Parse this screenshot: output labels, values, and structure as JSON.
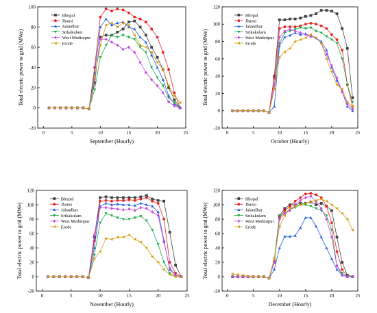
{
  "chart_data": [
    {
      "type": "line",
      "xlabel": "September (Hourly)",
      "ylabel": "Total electric power to grid (MWe)",
      "xlim": [
        -1,
        25
      ],
      "ylim": [
        -20,
        100
      ],
      "xticks": [
        0,
        5,
        10,
        15,
        20,
        25
      ],
      "yticks": [
        -20,
        0,
        20,
        40,
        60,
        80,
        100
      ],
      "legend": "top-left",
      "x": [
        1,
        2,
        3,
        4,
        5,
        6,
        7,
        8,
        9,
        10,
        11,
        12,
        13,
        14,
        15,
        16,
        17,
        18,
        19,
        20,
        21,
        22,
        23,
        24
      ],
      "series": [
        {
          "name": "Bhopal",
          "values": [
            0,
            0,
            0,
            0,
            0,
            0,
            0,
            -1,
            25,
            70,
            72,
            72,
            75,
            78,
            85,
            86,
            80,
            72,
            60,
            50,
            38,
            20,
            8,
            0
          ]
        },
        {
          "name": "Jhansi",
          "values": [
            0,
            0,
            0,
            0,
            0,
            0,
            0,
            -1,
            40,
            90,
            98,
            96,
            98,
            97,
            94,
            90,
            88,
            85,
            78,
            70,
            55,
            38,
            15,
            0
          ]
        },
        {
          "name": "Jalandhar",
          "values": [
            0,
            0,
            0,
            0,
            0,
            0,
            0,
            -1,
            35,
            80,
            88,
            82,
            84,
            85,
            80,
            78,
            70,
            65,
            52,
            40,
            28,
            12,
            4,
            0
          ]
        },
        {
          "name": "Srikakulam",
          "values": [
            0,
            0,
            0,
            0,
            0,
            0,
            0,
            -1,
            18,
            50,
            62,
            72,
            70,
            72,
            70,
            68,
            60,
            55,
            40,
            30,
            22,
            10,
            5,
            0
          ]
        },
        {
          "name": "West Medinipur",
          "values": [
            0,
            0,
            0,
            0,
            0,
            0,
            0,
            -1,
            28,
            68,
            68,
            65,
            62,
            58,
            60,
            55,
            45,
            35,
            28,
            22,
            15,
            6,
            2,
            0
          ]
        },
        {
          "name": "Erode",
          "values": [
            0,
            0,
            0,
            0,
            0,
            0,
            0,
            -1,
            30,
            62,
            82,
            84,
            80,
            84,
            82,
            72,
            62,
            60,
            55,
            45,
            38,
            22,
            12,
            5
          ]
        }
      ]
    },
    {
      "type": "line",
      "xlabel": "October (Hourly)",
      "ylabel": "Total electric power to grid (MWe)",
      "xlim": [
        -1,
        25
      ],
      "ylim": [
        -20,
        120
      ],
      "xticks": [
        0,
        5,
        10,
        15,
        20,
        25
      ],
      "yticks": [
        -20,
        0,
        20,
        40,
        60,
        80,
        100,
        120
      ],
      "legend": "top-left",
      "x": [
        1,
        2,
        3,
        4,
        5,
        6,
        7,
        8,
        9,
        10,
        11,
        12,
        13,
        14,
        15,
        16,
        17,
        18,
        19,
        20,
        21,
        22,
        23,
        24
      ],
      "series": [
        {
          "name": "Bhopal",
          "values": [
            0,
            0,
            0,
            0,
            0,
            0,
            0,
            -2,
            40,
            105,
            105,
            106,
            106,
            107,
            109,
            110,
            112,
            116,
            116,
            115,
            112,
            95,
            72,
            15
          ]
        },
        {
          "name": "Jhansi",
          "values": [
            0,
            0,
            0,
            0,
            0,
            0,
            0,
            -2,
            38,
            95,
            97,
            97,
            97,
            98,
            100,
            101,
            100,
            98,
            95,
            88,
            82,
            70,
            30,
            5
          ]
        },
        {
          "name": "Jalandhar",
          "values": [
            0,
            0,
            0,
            0,
            0,
            0,
            0,
            -2,
            5,
            75,
            85,
            87,
            90,
            88,
            89,
            86,
            84,
            80,
            70,
            50,
            35,
            22,
            5,
            0
          ]
        },
        {
          "name": "Srikakulam",
          "values": [
            0,
            0,
            0,
            0,
            0,
            0,
            0,
            -2,
            25,
            78,
            90,
            92,
            94,
            96,
            95,
            96,
            92,
            90,
            86,
            82,
            78,
            60,
            30,
            10
          ]
        },
        {
          "name": "West Medinipur",
          "values": [
            0,
            0,
            0,
            0,
            0,
            0,
            0,
            -2,
            30,
            85,
            92,
            94,
            92,
            90,
            88,
            86,
            84,
            78,
            65,
            52,
            38,
            22,
            8,
            2
          ]
        },
        {
          "name": "Erode",
          "values": [
            0,
            0,
            0,
            0,
            0,
            0,
            0,
            -2,
            25,
            62,
            68,
            72,
            80,
            82,
            84,
            88,
            84,
            78,
            60,
            45,
            30,
            25,
            10,
            5
          ]
        }
      ]
    },
    {
      "type": "line",
      "xlabel": "November (Hourly)",
      "ylabel": "Total electric power to grid (MWe)",
      "xlim": [
        -1,
        25
      ],
      "ylim": [
        -20,
        120
      ],
      "xticks": [
        0,
        5,
        10,
        15,
        20,
        25
      ],
      "yticks": [
        -20,
        0,
        20,
        40,
        60,
        80,
        100,
        120
      ],
      "legend": "top-left",
      "x": [
        1,
        2,
        3,
        4,
        5,
        6,
        7,
        8,
        9,
        10,
        11,
        12,
        13,
        14,
        15,
        16,
        17,
        18,
        19,
        20,
        21,
        22,
        23,
        24
      ],
      "series": [
        {
          "name": "Bhopal",
          "values": [
            0,
            0,
            0,
            0,
            0,
            0,
            0,
            -1,
            55,
            110,
            111,
            110,
            110,
            110,
            110,
            110,
            111,
            113,
            108,
            106,
            105,
            62,
            16,
            0
          ]
        },
        {
          "name": "Jhansi",
          "values": [
            0,
            0,
            0,
            0,
            0,
            0,
            0,
            -1,
            50,
            105,
            106,
            105,
            106,
            106,
            107,
            106,
            108,
            110,
            105,
            102,
            80,
            20,
            5,
            0
          ]
        },
        {
          "name": "Jalandhar",
          "values": [
            0,
            0,
            0,
            0,
            0,
            0,
            0,
            -1,
            40,
            98,
            102,
            100,
            101,
            100,
            100,
            99,
            102,
            100,
            98,
            90,
            50,
            10,
            2,
            0
          ]
        },
        {
          "name": "Srikakulam",
          "values": [
            0,
            0,
            0,
            0,
            0,
            0,
            0,
            -1,
            30,
            75,
            88,
            85,
            82,
            80,
            80,
            82,
            84,
            78,
            65,
            45,
            20,
            5,
            0,
            0
          ]
        },
        {
          "name": "West Medinipur",
          "values": [
            0,
            0,
            0,
            0,
            0,
            0,
            0,
            -1,
            58,
            96,
            96,
            95,
            94,
            93,
            94,
            92,
            96,
            95,
            90,
            85,
            48,
            12,
            2,
            0
          ]
        },
        {
          "name": "Erode",
          "values": [
            0,
            0,
            0,
            0,
            0,
            0,
            0,
            -1,
            25,
            35,
            53,
            52,
            55,
            55,
            58,
            52,
            48,
            40,
            28,
            20,
            10,
            3,
            0,
            0
          ]
        }
      ]
    },
    {
      "type": "line",
      "xlabel": "December (Hourly)",
      "ylabel": "Total electric power to grid (MWe)",
      "xlim": [
        -1,
        25
      ],
      "ylim": [
        -20,
        120
      ],
      "xticks": [
        0,
        5,
        10,
        15,
        20,
        25
      ],
      "yticks": [
        -20,
        0,
        20,
        40,
        60,
        80,
        100,
        120
      ],
      "legend": "top-left",
      "x": [
        1,
        2,
        3,
        4,
        5,
        6,
        7,
        8,
        9,
        10,
        11,
        12,
        13,
        14,
        15,
        16,
        17,
        18,
        19,
        20,
        21,
        22,
        23,
        24
      ],
      "series": [
        {
          "name": "Bhopal",
          "values": [
            0,
            0,
            0,
            0,
            0,
            0,
            0,
            -2,
            20,
            85,
            95,
            100,
            100,
            102,
            102,
            104,
            100,
            102,
            98,
            92,
            55,
            20,
            2,
            0
          ]
        },
        {
          "name": "Jhansi",
          "values": [
            0,
            0,
            0,
            0,
            0,
            0,
            0,
            -2,
            22,
            82,
            92,
            98,
            105,
            110,
            115,
            116,
            114,
            110,
            98,
            75,
            35,
            10,
            0,
            0
          ]
        },
        {
          "name": "Jalandhar",
          "values": [
            0,
            0,
            0,
            0,
            0,
            0,
            0,
            -2,
            10,
            40,
            56,
            56,
            57,
            68,
            82,
            82,
            70,
            55,
            40,
            25,
            10,
            2,
            0,
            0
          ]
        },
        {
          "name": "Srikakulam",
          "values": [
            0,
            0,
            0,
            0,
            0,
            0,
            0,
            -2,
            25,
            85,
            88,
            94,
            96,
            100,
            100,
            98,
            95,
            92,
            85,
            65,
            15,
            5,
            0,
            0
          ]
        },
        {
          "name": "West Medinipur",
          "values": [
            0,
            0,
            0,
            0,
            0,
            0,
            0,
            -2,
            20,
            80,
            88,
            92,
            100,
            106,
            110,
            112,
            104,
            95,
            80,
            55,
            15,
            2,
            0,
            0
          ]
        },
        {
          "name": "Erode",
          "values": [
            4,
            3,
            2,
            1,
            0,
            0,
            0,
            -2,
            25,
            70,
            85,
            95,
            98,
            100,
            102,
            104,
            106,
            108,
            105,
            100,
            95,
            88,
            80,
            65
          ]
        }
      ]
    }
  ]
}
